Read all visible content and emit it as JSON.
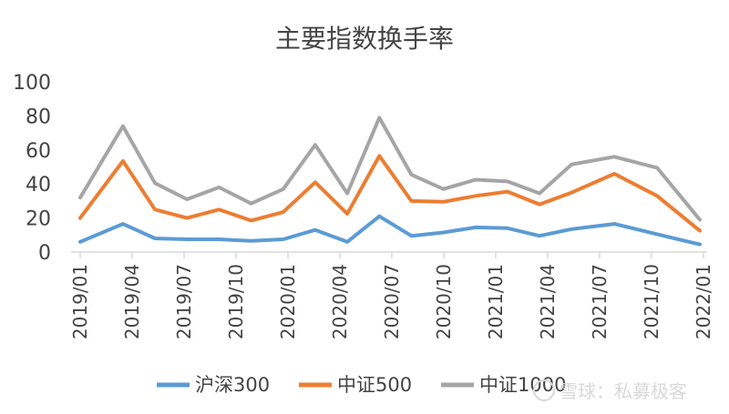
{
  "chart_data": {
    "type": "line",
    "title": "主要指数换手率",
    "xlabel": "",
    "ylabel": "",
    "ylim": [
      0,
      100
    ],
    "yticks": [
      0,
      20,
      40,
      60,
      80,
      100
    ],
    "x_tick_labels": [
      "2019/01",
      "2019/04",
      "2019/07",
      "2019/10",
      "2020/01",
      "2020/04",
      "2020/07",
      "2020/10",
      "2021/01",
      "2021/04",
      "2021/07",
      "2021/10",
      "2022/01"
    ],
    "x_points": 25,
    "legend_position": "bottom",
    "series": [
      {
        "name": "沪深300",
        "color": "#5B9BD5",
        "values": [
          6,
          16.5,
          8,
          7.5,
          7.5,
          6.5,
          7.5,
          13,
          6,
          21,
          9.5,
          11.5,
          14.5,
          14,
          9.5,
          13.5,
          16.5,
          10.5,
          4.5
        ]
      },
      {
        "name": "中证500",
        "color": "#ED7D31",
        "values": [
          20,
          53.5,
          25,
          20,
          25,
          18.5,
          23.5,
          41,
          22.5,
          56.5,
          30,
          29.5,
          33,
          35.5,
          28,
          35,
          46,
          33,
          12.5
        ]
      },
      {
        "name": "中证1000",
        "color": "#A5A5A5",
        "values": [
          32,
          74,
          40.5,
          31,
          38,
          28.5,
          37,
          63,
          34.5,
          79,
          45.5,
          37,
          42.5,
          41.5,
          34.5,
          51.5,
          56,
          49.5,
          19
        ]
      }
    ],
    "x_index": [
      0,
      2,
      3.5,
      5,
      6.5,
      8,
      9.5,
      11,
      12.5,
      14,
      15.5,
      17,
      18.5,
      20,
      21.5,
      23,
      25,
      27,
      29
    ]
  },
  "watermark": "雪球：私募极客"
}
